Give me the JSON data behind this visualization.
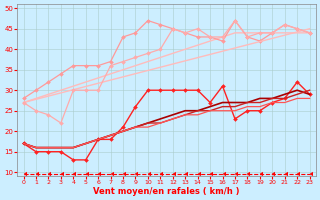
{
  "xlabel": "Vent moyen/en rafales ( km/h )",
  "bg_color": "#cceeff",
  "grid_color": "#aacccc",
  "xlim": [
    -0.5,
    23.5
  ],
  "ylim": [
    9,
    51
  ],
  "yticks": [
    10,
    15,
    20,
    25,
    30,
    35,
    40,
    45,
    50
  ],
  "xticks": [
    0,
    1,
    2,
    3,
    4,
    5,
    6,
    7,
    8,
    9,
    10,
    11,
    12,
    13,
    14,
    15,
    16,
    17,
    18,
    19,
    20,
    21,
    22,
    23
  ],
  "series": [
    {
      "x": [
        0,
        1,
        2,
        3,
        4,
        5,
        6,
        7,
        8,
        9,
        10,
        11,
        12,
        13,
        14,
        15,
        16,
        17,
        18,
        19,
        20,
        21,
        22,
        23
      ],
      "y": [
        27,
        28,
        29,
        30,
        31,
        32,
        33,
        34,
        35,
        36,
        37,
        38,
        39,
        40,
        41,
        42,
        43,
        44,
        44,
        44,
        44,
        44,
        44,
        44
      ],
      "color": "#ffbbbb",
      "marker": null,
      "markersize": 0,
      "linewidth": 1.0,
      "linestyle": "-"
    },
    {
      "x": [
        0,
        1,
        2,
        3,
        4,
        5,
        6,
        7,
        8,
        9,
        10,
        11,
        12,
        13,
        14,
        15,
        16,
        17,
        18,
        19,
        20,
        21,
        22,
        23
      ],
      "y": [
        28,
        30,
        32,
        34,
        36,
        36,
        36,
        37,
        43,
        44,
        47,
        46,
        45,
        44,
        43,
        43,
        42,
        47,
        43,
        42,
        44,
        46,
        45,
        44
      ],
      "color": "#ff9999",
      "marker": "D",
      "markersize": 2.0,
      "linewidth": 0.9,
      "linestyle": "-"
    },
    {
      "x": [
        0,
        23
      ],
      "y": [
        27,
        45
      ],
      "color": "#ffbbbb",
      "marker": null,
      "markersize": 0,
      "linewidth": 1.0,
      "linestyle": "-"
    },
    {
      "x": [
        0,
        1,
        2,
        3,
        4,
        5,
        6,
        7,
        8,
        9,
        10,
        11,
        12,
        13,
        14,
        15,
        16,
        17,
        18,
        19,
        20,
        21,
        22,
        23
      ],
      "y": [
        27,
        25,
        24,
        22,
        30,
        30,
        30,
        36,
        37,
        38,
        39,
        40,
        45,
        44,
        45,
        43,
        43,
        47,
        43,
        44,
        44,
        46,
        45,
        44
      ],
      "color": "#ffaaaa",
      "marker": "D",
      "markersize": 2.0,
      "linewidth": 0.9,
      "linestyle": "-"
    },
    {
      "x": [
        0,
        1,
        2,
        3,
        4,
        5,
        6,
        7,
        8,
        9,
        10,
        11,
        12,
        13,
        14,
        15,
        16,
        17,
        18,
        19,
        20,
        21,
        22,
        23
      ],
      "y": [
        17,
        15,
        15,
        15,
        13,
        13,
        18,
        18,
        21,
        26,
        30,
        30,
        30,
        30,
        30,
        27,
        31,
        23,
        25,
        25,
        27,
        28,
        32,
        29
      ],
      "color": "#ff2222",
      "marker": "D",
      "markersize": 2.0,
      "linewidth": 1.0,
      "linestyle": "-"
    },
    {
      "x": [
        0,
        1,
        2,
        3,
        4,
        5,
        6,
        7,
        8,
        9,
        10,
        11,
        12,
        13,
        14,
        15,
        16,
        17,
        18,
        19,
        20,
        21,
        22,
        23
      ],
      "y": [
        17,
        16,
        16,
        16,
        16,
        17,
        18,
        19,
        20,
        21,
        22,
        23,
        24,
        25,
        25,
        26,
        27,
        27,
        27,
        28,
        28,
        29,
        30,
        29
      ],
      "color": "#aa0000",
      "marker": null,
      "markersize": 0,
      "linewidth": 1.2,
      "linestyle": "-"
    },
    {
      "x": [
        0,
        1,
        2,
        3,
        4,
        5,
        6,
        7,
        8,
        9,
        10,
        11,
        12,
        13,
        14,
        15,
        16,
        17,
        18,
        19,
        20,
        21,
        22,
        23
      ],
      "y": [
        17,
        16,
        16,
        16,
        16,
        17,
        18,
        19,
        20,
        21,
        22,
        22,
        23,
        24,
        25,
        25,
        26,
        26,
        27,
        27,
        28,
        28,
        29,
        30
      ],
      "color": "#cc2222",
      "marker": null,
      "markersize": 0,
      "linewidth": 1.0,
      "linestyle": "-"
    },
    {
      "x": [
        0,
        1,
        2,
        3,
        4,
        5,
        6,
        7,
        8,
        9,
        10,
        11,
        12,
        13,
        14,
        15,
        16,
        17,
        18,
        19,
        20,
        21,
        22,
        23
      ],
      "y": [
        17,
        16,
        16,
        16,
        16,
        17,
        18,
        19,
        20,
        21,
        21,
        22,
        23,
        24,
        24,
        25,
        25,
        25,
        26,
        26,
        27,
        27,
        28,
        28
      ],
      "color": "#ff5555",
      "marker": null,
      "markersize": 0,
      "linewidth": 0.9,
      "linestyle": "-"
    },
    {
      "x": [
        0,
        1,
        2,
        3,
        4,
        5,
        6,
        7,
        8,
        9,
        10,
        11,
        12,
        13,
        14,
        15,
        16,
        17,
        18,
        19,
        20,
        21,
        22,
        23
      ],
      "y": [
        9.5,
        9.5,
        9.5,
        9.5,
        9.5,
        9.5,
        9.5,
        9.5,
        9.5,
        9.5,
        9.5,
        9.5,
        9.5,
        9.5,
        9.5,
        9.5,
        9.5,
        9.5,
        9.5,
        9.5,
        9.5,
        9.5,
        9.5,
        9.5
      ],
      "color": "#ff0000",
      "marker": 4,
      "markersize": 3.0,
      "linewidth": 0.8,
      "linestyle": "--"
    }
  ]
}
